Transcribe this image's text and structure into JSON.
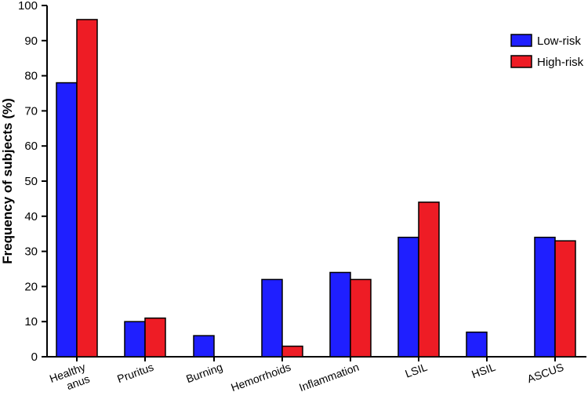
{
  "chart_data": {
    "type": "bar",
    "title": "",
    "xlabel": "",
    "ylabel": "Frequency of subjects (%)",
    "ylim": [
      0,
      100
    ],
    "yticks": [
      "0",
      "10",
      "20",
      "30",
      "40",
      "50",
      "60",
      "70",
      "80",
      "90",
      "100"
    ],
    "categories": [
      [
        "Healthy",
        "anus"
      ],
      [
        "Pruritus"
      ],
      [
        "Burning"
      ],
      [
        "Hemorrhoids"
      ],
      [
        "Inflammation"
      ],
      [
        "LSIL"
      ],
      [
        "HSIL"
      ],
      [
        "ASCUS"
      ]
    ],
    "series": [
      {
        "name": "Low-risk",
        "color": "#1f1fff",
        "values": [
          78,
          10,
          6,
          22,
          24,
          34,
          7,
          34
        ]
      },
      {
        "name": "High-risk",
        "color": "#ee1c25",
        "values": [
          96,
          11,
          0,
          3,
          22,
          44,
          0,
          33
        ]
      }
    ],
    "legend": {
      "placement": "top-right"
    },
    "grid": false
  }
}
